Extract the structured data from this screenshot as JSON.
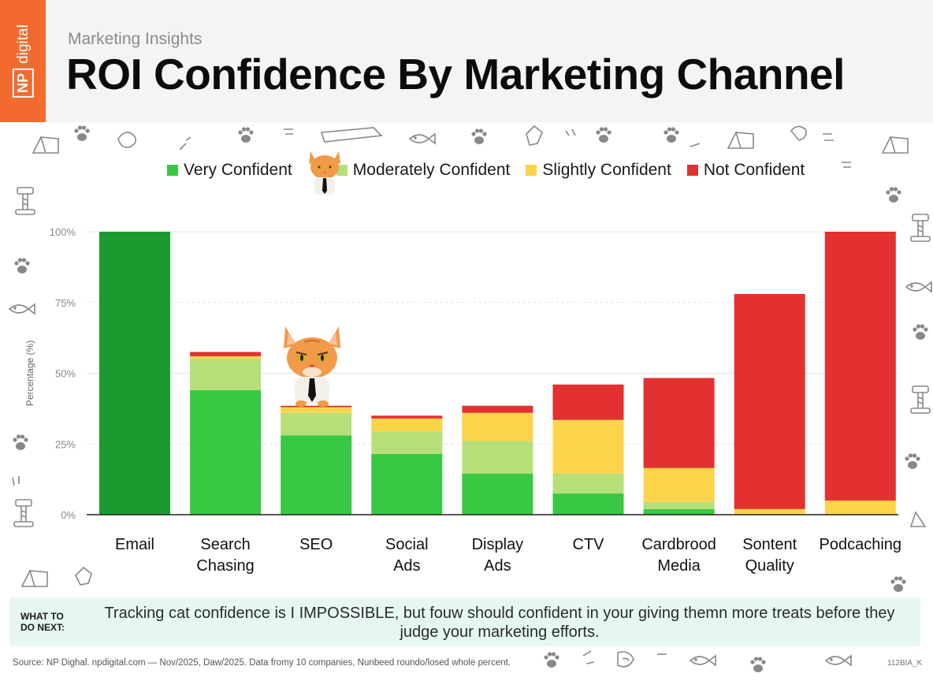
{
  "header": {
    "logo_text": "digital",
    "logo_box": "NP",
    "subtitle": "Marketing Insights",
    "title": "ROI Confidence By Marketing Channel"
  },
  "colors": {
    "very": "#38c844",
    "moderate": "#b6df7a",
    "slight": "#fbd44a",
    "not": "#e33030",
    "email": "#1d9a2e",
    "header_bg": "#f4f4f4",
    "logo": "#f26a2e",
    "callout_bg": "#e6f7f1"
  },
  "chart_data": {
    "type": "bar",
    "stacked": true,
    "title": "ROI Confidence By Marketing Channel",
    "ylabel": "Percentage (%)",
    "xlabel": "",
    "ylim": [
      0,
      100
    ],
    "yticks": [
      0,
      25,
      50,
      75,
      100
    ],
    "ytick_labels": [
      "0%",
      "25%",
      "50%",
      "75%",
      "100%"
    ],
    "categories": [
      [
        "Email"
      ],
      [
        "Search",
        "Chasing"
      ],
      [
        "SEO"
      ],
      [
        "Social",
        "Ads"
      ],
      [
        "Display",
        "Ads"
      ],
      [
        "CTV"
      ],
      [
        "Cardbrood",
        "Media"
      ],
      [
        "Sontent",
        "Quality"
      ],
      [
        "Podcaching"
      ]
    ],
    "series": [
      {
        "name": "Very Confident",
        "values": [
          100,
          44,
          28,
          21.5,
          14.5,
          7.5,
          2,
          0,
          0
        ]
      },
      {
        "name": "Moderately Confident",
        "values": [
          0,
          11,
          8,
          8,
          11.5,
          7,
          2.5,
          0,
          0
        ]
      },
      {
        "name": "Slightly Confident",
        "values": [
          0,
          1,
          2,
          4.5,
          10,
          19,
          12,
          2,
          5
        ]
      },
      {
        "name": "Not Confident",
        "values": [
          0,
          1.5,
          0.5,
          1,
          2.5,
          12.5,
          31.8,
          76,
          95
        ]
      }
    ]
  },
  "callout": {
    "label": "WHAT TO DO NEXT:",
    "text": "Tracking cat confidence is I IMPOSSIBLE, but fouw should confident in your giving themn more treats before they judge your marketing efforts."
  },
  "footer": {
    "source": "Source: NP Dighal. npdigital.com — Nov/2025, Daw/2025. Data fromy 10 companies, Nunbeed roundo/losed whole percent.",
    "code": "112BIA_K"
  }
}
